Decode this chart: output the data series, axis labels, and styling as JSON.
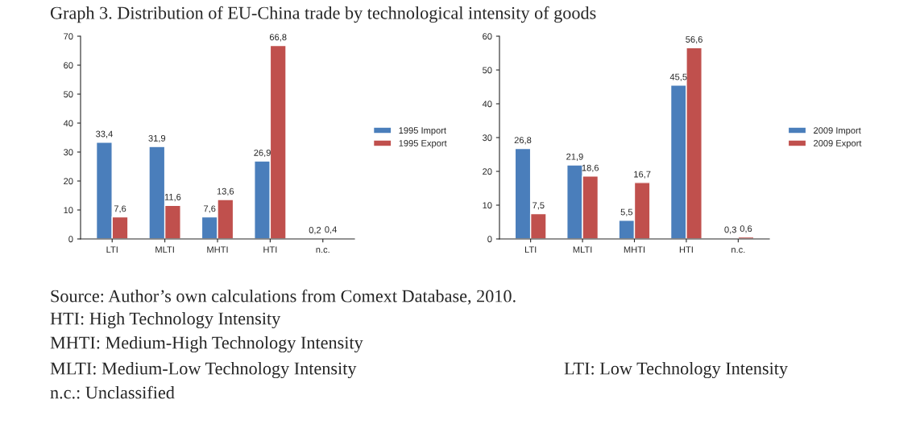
{
  "chart_data": [
    {
      "type": "bar",
      "title": "Graph 3. Distribution of EU-China trade by technological intensity of goods",
      "categories": [
        "LTI",
        "MLTI",
        "MHTI",
        "HTI",
        "n.c."
      ],
      "series": [
        {
          "name": "1995 Import",
          "color": "#4a7ebb",
          "values": [
            33.4,
            31.9,
            7.6,
            26.9,
            0.2
          ],
          "value_labels": [
            "33,4",
            "31,9",
            "7,6",
            "26,9",
            "0,2"
          ]
        },
        {
          "name": "1995 Export",
          "color": "#c0504d",
          "values": [
            7.6,
            11.6,
            13.6,
            66.8,
            0.4
          ],
          "value_labels": [
            "7,6",
            "11,6",
            "13,6",
            "66,8",
            "0,4"
          ]
        }
      ],
      "ylim": [
        0,
        70
      ],
      "yticks": [
        0,
        10,
        20,
        30,
        40,
        50,
        60,
        70
      ],
      "grid": false,
      "legend": "right"
    },
    {
      "type": "bar",
      "categories": [
        "LTI",
        "MLTI",
        "MHTI",
        "HTI",
        "n.c."
      ],
      "series": [
        {
          "name": "2009 Import",
          "color": "#4a7ebb",
          "values": [
            26.8,
            21.9,
            5.5,
            45.5,
            0.3
          ],
          "value_labels": [
            "26,8",
            "21,9",
            "5,5",
            "45,5",
            "0,3"
          ]
        },
        {
          "name": "2009 Export",
          "color": "#c0504d",
          "values": [
            7.5,
            18.6,
            16.7,
            56.6,
            0.6
          ],
          "value_labels": [
            "7,5",
            "18,6",
            "16,7",
            "56,6",
            "0,6"
          ]
        }
      ],
      "ylim": [
        0,
        60
      ],
      "yticks": [
        0,
        10,
        20,
        30,
        40,
        50,
        60
      ],
      "grid": false,
      "legend": "right",
      "annotations": [
        "Source: Author’s own calculations from Comext Database, 2010.",
        "HTI: High Technology Intensity",
        "MHTI: Medium-High Technology Intensity",
        "MLTI: Medium-Low Technology Intensity",
        "LTI: Low Technology Intensity",
        "n.c.: Unclassified"
      ]
    }
  ]
}
